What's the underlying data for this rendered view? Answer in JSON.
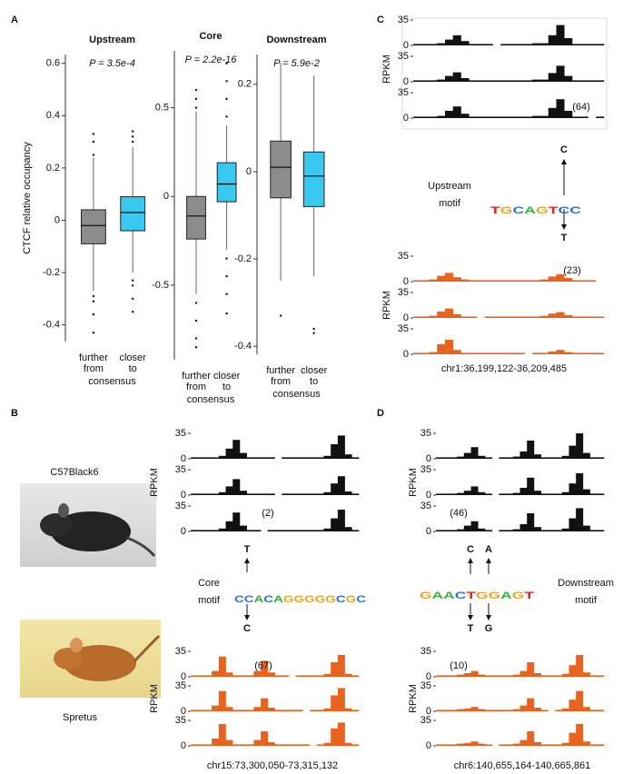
{
  "panels": [
    "A",
    "B",
    "C",
    "D"
  ],
  "images": [
    {
      "label": "C57Black6"
    },
    {
      "label": "Spretus"
    }
  ],
  "motifs": [
    {
      "label": [
        "Upstream",
        "motif"
      ],
      "logo": "TGCAGTCC",
      "above": [
        "C"
      ],
      "below": [
        "T"
      ]
    },
    {
      "label": [
        "Core",
        "motif"
      ],
      "logo": "CCACAGGGGGCGC",
      "above": [
        "T"
      ],
      "below": [
        "C"
      ]
    },
    {
      "label": [
        "Downstream",
        "motif"
      ],
      "logo": "GAACTGGAGT",
      "above": [
        "C",
        "A"
      ],
      "below": [
        "T",
        "G"
      ]
    }
  ],
  "chart_data": [
    {
      "type": "box",
      "title": "Upstream",
      "subtitle": "P = 3.5e-4",
      "ylabel": "CTCF relative occupancy",
      "categories": [
        "further from",
        "closer to"
      ],
      "xlabel": "consensus",
      "ylim": [
        -0.45,
        0.62
      ],
      "yticks": [
        -0.4,
        -0.2,
        0,
        0.2,
        0.4,
        0.6
      ],
      "series": [
        {
          "color": "#8c8c8c",
          "q1": -0.09,
          "median": -0.02,
          "q3": 0.04,
          "whislo": -0.27,
          "whishi": 0.24,
          "outliers": [
            0.25,
            0.3,
            0.33,
            -0.29,
            -0.31,
            -0.36,
            -0.43
          ]
        },
        {
          "color": "#39c8ef",
          "q1": -0.04,
          "median": 0.03,
          "q3": 0.09,
          "whislo": -0.2,
          "whishi": 0.28,
          "outliers": [
            0.3,
            0.32,
            0.34,
            -0.23,
            -0.25,
            -0.3,
            -0.35
          ]
        }
      ]
    },
    {
      "type": "box",
      "title": "Core",
      "subtitle": "P = 2.2e-16",
      "categories": [
        "further from",
        "closer to"
      ],
      "xlabel": "consensus",
      "ylim": [
        -0.9,
        0.8
      ],
      "yticks": [
        -0.5,
        0,
        0.5
      ],
      "series": [
        {
          "color": "#8c8c8c",
          "q1": -0.24,
          "median": -0.11,
          "q3": 0.0,
          "whislo": -0.55,
          "whishi": 0.48,
          "outliers": [
            0.5,
            0.55,
            0.6,
            -0.6,
            -0.7,
            -0.8,
            -0.85
          ]
        },
        {
          "color": "#39c8ef",
          "q1": -0.03,
          "median": 0.07,
          "q3": 0.19,
          "whislo": -0.3,
          "whishi": 0.4,
          "outliers": [
            0.45,
            0.55,
            0.65,
            0.75,
            -0.35,
            -0.45,
            -0.55,
            -0.66
          ]
        }
      ]
    },
    {
      "type": "box",
      "title": "Downstream",
      "subtitle": "P = 5.9e-2",
      "categories": [
        "further from",
        "closer to"
      ],
      "xlabel": "consensus",
      "ylim": [
        -0.41,
        0.26
      ],
      "yticks": [
        -0.4,
        -0.2,
        0,
        0.2
      ],
      "series": [
        {
          "color": "#8c8c8c",
          "q1": -0.06,
          "median": 0.01,
          "q3": 0.07,
          "whislo": -0.25,
          "whishi": 0.25,
          "outliers": [
            -0.33
          ]
        },
        {
          "color": "#39c8ef",
          "q1": -0.08,
          "median": -0.01,
          "q3": 0.045,
          "whislo": -0.24,
          "whishi": 0.22,
          "outliers": [
            -0.36,
            -0.37
          ]
        }
      ]
    },
    {
      "type": "track",
      "ylabel": "RPKM",
      "ylim": [
        0,
        35
      ],
      "yticks": [
        0,
        35
      ],
      "color": "#111111",
      "series": [
        {
          "values": [
            2,
            2,
            2,
            3,
            8,
            14,
            6,
            2,
            2,
            2,
            null,
            2,
            2,
            2,
            2,
            3,
            3,
            14,
            28,
            10,
            2,
            2,
            2,
            2
          ]
        },
        {
          "values": [
            2,
            2,
            2,
            3,
            8,
            13,
            5,
            2,
            2,
            2,
            2,
            2,
            2,
            2,
            2,
            3,
            3,
            12,
            22,
            8,
            2,
            2,
            2,
            2
          ]
        },
        {
          "values": [
            2,
            2,
            2,
            3,
            10,
            16,
            6,
            2,
            2,
            2,
            2,
            2,
            2,
            2,
            2,
            3,
            3,
            14,
            26,
            10,
            2,
            2,
            null,
            2
          ],
          "label": "(64)"
        }
      ]
    },
    {
      "type": "track",
      "ylabel": "RPKM",
      "ylim": [
        0,
        35
      ],
      "yticks": [
        0,
        35
      ],
      "color": "#e8641e",
      "xlabel": "chr1:36,199,122-36,209,485",
      "series": [
        {
          "values": [
            2,
            2,
            3,
            8,
            12,
            6,
            3,
            2,
            2,
            2,
            2,
            2,
            2,
            2,
            2,
            2,
            3,
            7,
            10,
            5,
            2,
            2,
            2,
            null
          ],
          "label": "(23)"
        },
        {
          "values": [
            2,
            2,
            3,
            9,
            13,
            5,
            2,
            2,
            null,
            2,
            2,
            2,
            2,
            2,
            2,
            2,
            3,
            6,
            8,
            4,
            2,
            2,
            2,
            2
          ]
        },
        {
          "values": [
            2,
            2,
            3,
            14,
            20,
            6,
            2,
            2,
            2,
            2,
            2,
            2,
            2,
            2,
            null,
            2,
            2,
            4,
            6,
            3,
            2,
            2,
            2,
            2
          ]
        }
      ]
    },
    {
      "type": "track",
      "ylabel": "RPKM",
      "ylim": [
        0,
        35
      ],
      "yticks": [
        0,
        35
      ],
      "color": "#111111",
      "series": [
        {
          "values": [
            2,
            2,
            2,
            2,
            4,
            14,
            26,
            8,
            2,
            2,
            2,
            2,
            null,
            2,
            2,
            2,
            2,
            2,
            2,
            4,
            20,
            32,
            6,
            2
          ]
        },
        {
          "values": [
            2,
            2,
            2,
            2,
            4,
            12,
            22,
            6,
            2,
            2,
            2,
            2,
            null,
            2,
            2,
            2,
            2,
            2,
            2,
            4,
            16,
            26,
            5,
            2
          ]
        },
        {
          "values": [
            2,
            2,
            2,
            2,
            4,
            14,
            26,
            8,
            2,
            2,
            null,
            2,
            2,
            2,
            2,
            2,
            2,
            2,
            2,
            4,
            18,
            30,
            6,
            2
          ],
          "label": "(2)"
        }
      ]
    },
    {
      "type": "track",
      "ylabel": "RPKM",
      "ylim": [
        0,
        35
      ],
      "yticks": [
        0,
        35
      ],
      "color": "#e8641e",
      "xlabel": "chr15:73,300,050-73,315,132",
      "series": [
        {
          "values": [
            2,
            2,
            2,
            8,
            28,
            6,
            2,
            2,
            2,
            8,
            22,
            6,
            2,
            2,
            null,
            2,
            2,
            2,
            2,
            4,
            20,
            30,
            4,
            2
          ],
          "label": "(67)"
        },
        {
          "values": [
            2,
            2,
            2,
            8,
            28,
            6,
            2,
            2,
            2,
            6,
            18,
            5,
            2,
            2,
            2,
            2,
            null,
            2,
            2,
            4,
            22,
            32,
            4,
            2
          ]
        },
        {
          "values": [
            2,
            2,
            2,
            10,
            30,
            8,
            2,
            2,
            2,
            8,
            20,
            5,
            2,
            2,
            2,
            2,
            2,
            null,
            2,
            4,
            24,
            32,
            4,
            2
          ]
        }
      ]
    },
    {
      "type": "track",
      "ylabel": "RPKM",
      "ylim": [
        0,
        35
      ],
      "yticks": [
        0,
        35
      ],
      "color": "#111111",
      "series": [
        {
          "values": [
            2,
            2,
            2,
            3,
            8,
            16,
            4,
            2,
            null,
            2,
            2,
            3,
            10,
            25,
            6,
            2,
            2,
            2,
            4,
            18,
            35,
            8,
            2,
            2
          ]
        },
        {
          "values": [
            2,
            2,
            2,
            3,
            6,
            12,
            4,
            2,
            null,
            2,
            2,
            3,
            10,
            24,
            6,
            2,
            2,
            2,
            4,
            16,
            30,
            8,
            2,
            2
          ]
        },
        {
          "values": [
            2,
            2,
            2,
            3,
            8,
            14,
            4,
            2,
            null,
            2,
            2,
            3,
            10,
            25,
            6,
            2,
            2,
            2,
            4,
            18,
            32,
            8,
            2,
            2
          ],
          "label": "(46)"
        }
      ]
    },
    {
      "type": "track",
      "ylabel": "RPKM",
      "ylim": [
        0,
        35
      ],
      "yticks": [
        0,
        35
      ],
      "color": "#e8641e",
      "xlabel": "chr6:140,655,164-140,665,861",
      "series": [
        {
          "values": [
            2,
            2,
            2,
            3,
            5,
            8,
            3,
            2,
            2,
            2,
            2,
            3,
            8,
            20,
            5,
            2,
            2,
            2,
            4,
            16,
            30,
            6,
            2,
            2
          ],
          "label": "(10)"
        },
        {
          "values": [
            2,
            2,
            2,
            3,
            4,
            6,
            3,
            2,
            2,
            2,
            2,
            3,
            8,
            18,
            5,
            2,
            null,
            2,
            4,
            16,
            28,
            6,
            2,
            2
          ]
        },
        {
          "values": [
            2,
            2,
            2,
            3,
            4,
            6,
            3,
            2,
            null,
            2,
            2,
            3,
            8,
            20,
            5,
            2,
            2,
            2,
            4,
            18,
            30,
            6,
            2,
            2
          ]
        }
      ]
    }
  ]
}
